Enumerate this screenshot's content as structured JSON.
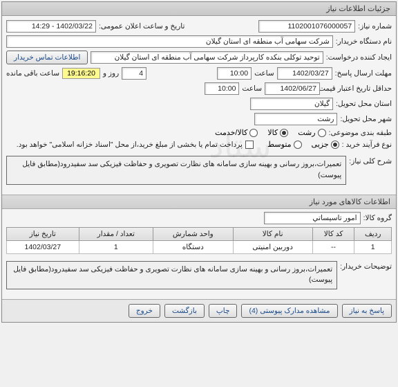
{
  "panel_title": "جزئیات اطلاعات نیاز",
  "need_no": {
    "label": "شماره نیاز:",
    "value": "1102001076000057"
  },
  "pub_date": {
    "label": "تاریخ و ساعت اعلان عمومی:",
    "value": "1402/03/22 - 14:29"
  },
  "buyer": {
    "label": "نام دستگاه خریدار:",
    "value": "شرکت سهامی آب منطقه ای استان گیلان"
  },
  "creator": {
    "label": "ایجاد کننده درخواست:",
    "value": "توحید توکلی بنکده کارپرداز شرکت سهامی آب منطقه ای استان گیلان"
  },
  "contact_btn": "اطلاعات تماس خریدار",
  "reply_deadline": {
    "label": "مهلت ارسال پاسخ:",
    "date": "1402/03/27",
    "time_lbl": "ساعت",
    "time": "10:00",
    "mid": "روز و",
    "days": "4",
    "remain_lbl": "ساعت باقی مانده",
    "timer": "19:16:20"
  },
  "validity": {
    "label": "حداقل تاریخ اعتبار قیمت: تا تاریخ:",
    "date": "1402/06/27",
    "time_lbl": "ساعت",
    "time": "10:00"
  },
  "province": {
    "label": "استان محل تحویل:",
    "value": "گیلان"
  },
  "city": {
    "label": "شهر محل تحویل:",
    "value": "رشت"
  },
  "subject_class": {
    "label": "طبقه بندی موضوعی:",
    "options": [
      {
        "label": "رشت",
        "selected": false
      },
      {
        "label": "کالا",
        "selected": true
      },
      {
        "label": "کالا/خدمت",
        "selected": false
      }
    ]
  },
  "buy_process": {
    "label": "نوع فرآیند خرید :",
    "options": [
      {
        "label": "جزیی",
        "selected": true
      },
      {
        "label": "متوسط",
        "selected": false
      }
    ],
    "note": "پرداخت تمام یا بخشی از مبلغ خرید،از محل \"اسناد خزانه اسلامی\" خواهد بود.",
    "note_checked": false
  },
  "need_summary": {
    "label": "شرح کلی نیاز:",
    "text": "تعمیرات،بروز رسانی و بهینه سازی سامانه های نظارت تصویری و حفاظت فیزیکی  سد سفیدرود(مطابق فایل پیوست)"
  },
  "goods_title": "اطلاعات کالاهای مورد نیاز",
  "goods_group": {
    "label": "گروه کالا:",
    "value": "امور تاسيساتي"
  },
  "table": {
    "cols": [
      "ردیف",
      "کد کالا",
      "نام کالا",
      "واحد شمارش",
      "تعداد / مقدار",
      "تاریخ نیاز"
    ],
    "rows": [
      [
        "1",
        "--",
        "دوربین امنیتی",
        "دستگاه",
        "1",
        "1402/03/27"
      ]
    ]
  },
  "buyer_notes": {
    "label": "توضیحات خریدار:",
    "text": "تعمیرات،بروز رسانی و بهینه سازی سامانه های نظارت تصویری و حفاظت فیزیکی  سد سفیدرود(مطابق فایل پیوست)"
  },
  "buttons": {
    "reply": "پاسخ به نیاز",
    "attach": "مشاهده مدارک پیوستی (4)",
    "print": "چاپ",
    "back": "بازگشت",
    "exit": "خروج"
  }
}
